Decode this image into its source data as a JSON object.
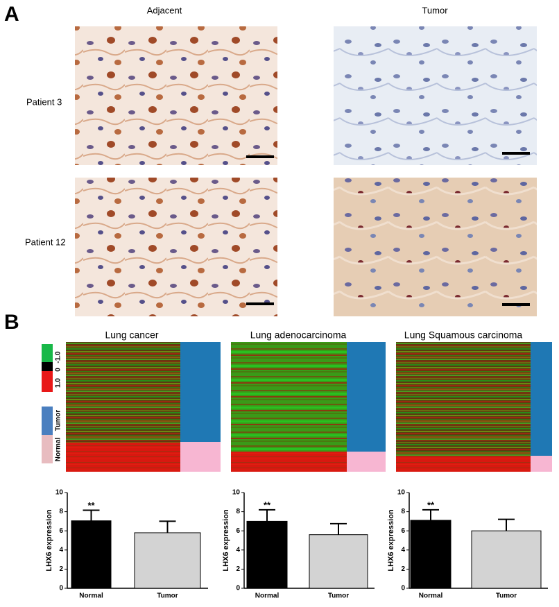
{
  "panel_a": {
    "label": "A",
    "columns": [
      "Adjacent",
      "Tumor"
    ],
    "rows": [
      "Patient 3",
      "Patient 12"
    ]
  },
  "panel_b": {
    "label": "B",
    "heatmaps": [
      {
        "title": "Lung cancer"
      },
      {
        "title": "Lung adenocarcinoma"
      },
      {
        "title": "Lung Squamous carcinoma"
      }
    ],
    "scale_labels": [
      "-1.0",
      "0",
      "1.0"
    ],
    "group_labels": [
      "Tumor",
      "Normal"
    ]
  },
  "chart_data": [
    {
      "type": "bar",
      "ylabel": "LHX6 expression",
      "categories": [
        "Normal",
        "Tumor"
      ],
      "values": [
        7.05,
        5.8
      ],
      "errors": [
        1.1,
        1.2
      ],
      "colors": [
        "#000000",
        "#d3d3d3"
      ],
      "annotation": "**",
      "ylim": [
        0,
        10
      ],
      "yticks": [
        0,
        2,
        4,
        6,
        8,
        10
      ]
    },
    {
      "type": "bar",
      "ylabel": "LHX6 expression",
      "categories": [
        "Normal",
        "Tumor"
      ],
      "values": [
        7.0,
        5.6
      ],
      "errors": [
        1.2,
        1.15
      ],
      "colors": [
        "#000000",
        "#d3d3d3"
      ],
      "annotation": "**",
      "ylim": [
        0,
        10
      ],
      "yticks": [
        0,
        2,
        4,
        6,
        8,
        10
      ]
    },
    {
      "type": "bar",
      "ylabel": "LHX6 expression",
      "categories": [
        "Normal",
        "Tumor"
      ],
      "values": [
        7.1,
        6.0
      ],
      "errors": [
        1.1,
        1.2
      ],
      "colors": [
        "#000000",
        "#d3d3d3"
      ],
      "annotation": "**",
      "ylim": [
        0,
        10
      ],
      "yticks": [
        0,
        2,
        4,
        6,
        8,
        10
      ]
    }
  ]
}
